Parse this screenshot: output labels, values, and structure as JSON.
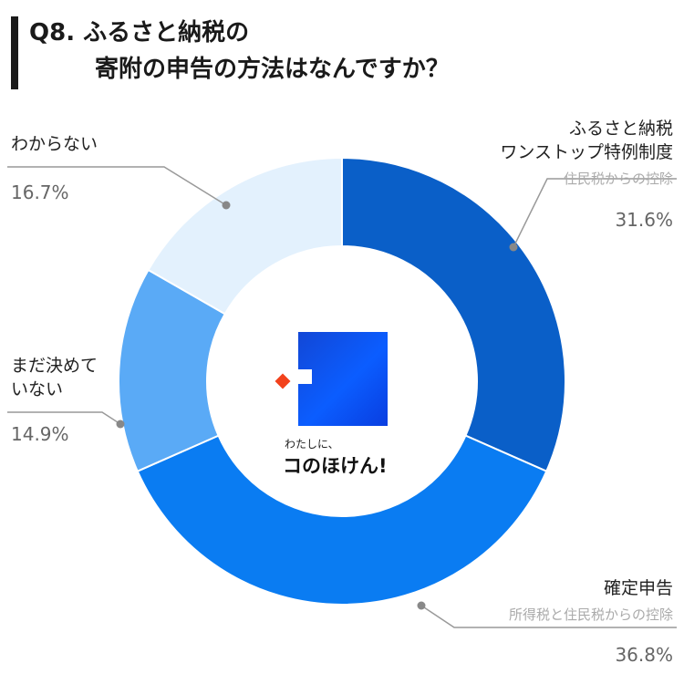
{
  "header": {
    "line1": "Q8. ふるさと納税の",
    "line2": "寄附の申告の方法はなんですか？"
  },
  "labels": {
    "furusato": {
      "name1": "ふるさと納税",
      "name2": "ワンストップ特例制度",
      "sub": "住民税からの控除",
      "pct": "31.6%"
    },
    "kakutei": {
      "name1": "確定申告",
      "sub": "所得税と住民税からの控除",
      "pct": "36.8%"
    },
    "madakime": {
      "name1": "まだ決めて",
      "name2": "いない",
      "pct": "14.9%"
    },
    "wakaranai": {
      "name1": "わからない",
      "pct": "16.7%"
    }
  },
  "logo": {
    "small": "わたしに、",
    "big": "コのほけん!"
  },
  "chart_data": {
    "type": "pie",
    "donut": true,
    "start": "top, clockwise",
    "categories": [
      "ふるさと納税 ワンストップ特例制度",
      "確定申告",
      "まだ決めていない",
      "わからない"
    ],
    "values": [
      31.6,
      36.8,
      14.9,
      16.7
    ],
    "unit": "%",
    "colors": [
      "#0a5fc8",
      "#0a7cf2",
      "#5aaaf6",
      "#e3f1fd"
    ]
  }
}
